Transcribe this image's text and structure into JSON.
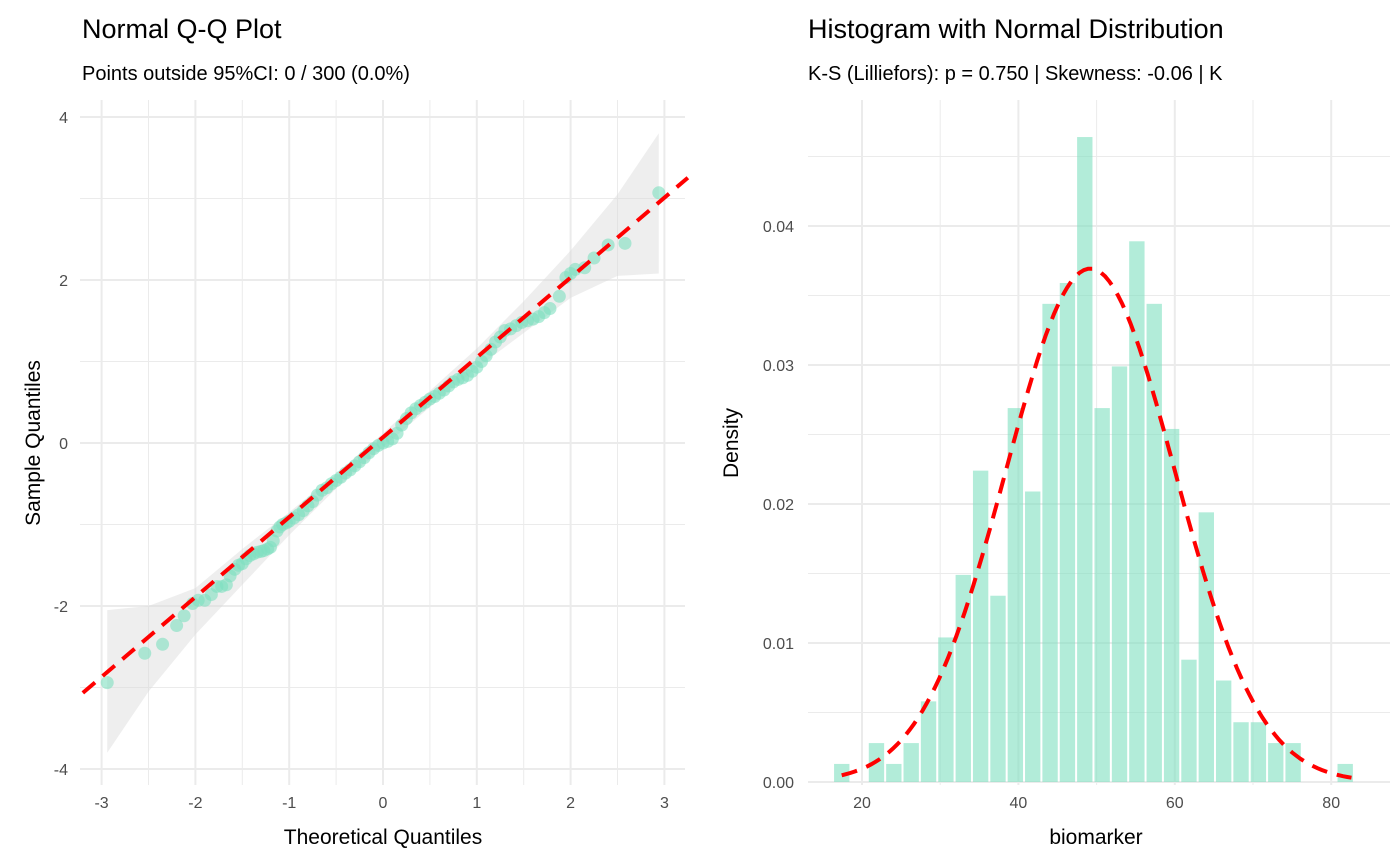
{
  "chart_data": [
    {
      "type": "scatter",
      "title": "Normal Q-Q Plot",
      "subtitle": "Points outside 95%CI: 0 / 300 (0.0%)",
      "xlabel": "Theoretical Quantiles",
      "ylabel": "Sample Quantiles",
      "xlim": [
        -3.2,
        3.25
      ],
      "ylim": [
        -4.2,
        4.2
      ],
      "xticks": [
        -3,
        -2,
        -1,
        0,
        1,
        2,
        3
      ],
      "xtick_labels": [
        "-3",
        "-2",
        "-1",
        "0",
        "1",
        "2",
        "3"
      ],
      "yticks": [
        -4,
        -2,
        0,
        2,
        4
      ],
      "ytick_labels": [
        "-4",
        "-2",
        "0",
        "2",
        "4"
      ],
      "grid": true,
      "n_points": 300,
      "point_color": "#7fe0c0",
      "reference_line": {
        "intercept": 0.07,
        "slope": 0.98,
        "color": "#ff0000",
        "style": "dashed"
      },
      "ci_band": [
        [
          -2.94,
          -3.8,
          -2.05
        ],
        [
          -2.5,
          -3.05,
          -2.0
        ],
        [
          -2.0,
          -2.35,
          -1.78
        ],
        [
          -1.5,
          -1.74,
          -1.3
        ],
        [
          -1.0,
          -1.13,
          -0.85
        ],
        [
          -0.5,
          -0.56,
          -0.38
        ],
        [
          0,
          -0.05,
          0.12
        ],
        [
          0.5,
          0.44,
          0.64
        ],
        [
          1.0,
          0.92,
          1.16
        ],
        [
          1.5,
          1.35,
          1.74
        ],
        [
          2.0,
          1.78,
          2.36
        ],
        [
          2.5,
          2.05,
          3.05
        ],
        [
          2.94,
          2.08,
          3.8
        ]
      ],
      "ci_color": "#d9d9d9",
      "points": [
        [
          -2.94,
          -2.94
        ],
        [
          -2.54,
          -2.58
        ],
        [
          -2.35,
          -2.47
        ],
        [
          -2.2,
          -2.24
        ],
        [
          -2.12,
          -2.12
        ],
        [
          -2.03,
          -1.97
        ],
        [
          -1.97,
          -1.93
        ],
        [
          -1.9,
          -1.93
        ],
        [
          -1.83,
          -1.86
        ],
        [
          -1.77,
          -1.76
        ],
        [
          -1.72,
          -1.76
        ],
        [
          -1.67,
          -1.74
        ],
        [
          -1.63,
          -1.63
        ],
        [
          -1.58,
          -1.55
        ],
        [
          -1.54,
          -1.5
        ],
        [
          -1.5,
          -1.48
        ],
        [
          -1.46,
          -1.42
        ],
        [
          -1.42,
          -1.38
        ],
        [
          -1.38,
          -1.36
        ],
        [
          -1.34,
          -1.34
        ],
        [
          -1.3,
          -1.33
        ],
        [
          -1.27,
          -1.32
        ],
        [
          -1.23,
          -1.3
        ],
        [
          -1.2,
          -1.28
        ],
        [
          -1.17,
          -1.2
        ],
        [
          -1.13,
          -1.08
        ],
        [
          -1.1,
          -1.03
        ],
        [
          -1.07,
          -1.0
        ],
        [
          -1.03,
          -0.98
        ],
        [
          -1.0,
          -0.96
        ],
        [
          -0.95,
          -0.92
        ],
        [
          -0.9,
          -0.88
        ],
        [
          -0.85,
          -0.83
        ],
        [
          -0.8,
          -0.77
        ],
        [
          -0.75,
          -0.72
        ],
        [
          -0.7,
          -0.64
        ],
        [
          -0.65,
          -0.58
        ],
        [
          -0.6,
          -0.55
        ],
        [
          -0.55,
          -0.5
        ],
        [
          -0.5,
          -0.46
        ],
        [
          -0.45,
          -0.42
        ],
        [
          -0.4,
          -0.37
        ],
        [
          -0.35,
          -0.33
        ],
        [
          -0.3,
          -0.28
        ],
        [
          -0.25,
          -0.23
        ],
        [
          -0.2,
          -0.18
        ],
        [
          -0.15,
          -0.12
        ],
        [
          -0.1,
          -0.07
        ],
        [
          -0.05,
          -0.03
        ],
        [
          0,
          0.0
        ],
        [
          0.05,
          0.02
        ],
        [
          0.1,
          0.05
        ],
        [
          0.15,
          0.12
        ],
        [
          0.2,
          0.22
        ],
        [
          0.25,
          0.3
        ],
        [
          0.3,
          0.37
        ],
        [
          0.35,
          0.42
        ],
        [
          0.4,
          0.46
        ],
        [
          0.45,
          0.5
        ],
        [
          0.5,
          0.54
        ],
        [
          0.55,
          0.57
        ],
        [
          0.6,
          0.61
        ],
        [
          0.65,
          0.65
        ],
        [
          0.7,
          0.7
        ],
        [
          0.75,
          0.75
        ],
        [
          0.8,
          0.78
        ],
        [
          0.85,
          0.8
        ],
        [
          0.9,
          0.83
        ],
        [
          0.95,
          0.88
        ],
        [
          1.0,
          0.93
        ],
        [
          1.05,
          1.0
        ],
        [
          1.1,
          1.07
        ],
        [
          1.15,
          1.15
        ],
        [
          1.2,
          1.24
        ],
        [
          1.25,
          1.3
        ],
        [
          1.3,
          1.38
        ],
        [
          1.36,
          1.4
        ],
        [
          1.42,
          1.44
        ],
        [
          1.48,
          1.48
        ],
        [
          1.54,
          1.5
        ],
        [
          1.6,
          1.52
        ],
        [
          1.66,
          1.55
        ],
        [
          1.72,
          1.6
        ],
        [
          1.78,
          1.65
        ],
        [
          1.88,
          1.8
        ],
        [
          1.95,
          2.03
        ],
        [
          2.0,
          2.08
        ],
        [
          2.05,
          2.13
        ],
        [
          2.15,
          2.15
        ],
        [
          2.25,
          2.27
        ],
        [
          2.4,
          2.43
        ],
        [
          2.58,
          2.45
        ],
        [
          2.94,
          3.07
        ]
      ]
    },
    {
      "type": "bar",
      "title": "Histogram with Normal Distribution",
      "subtitle": "K-S (Lilliefors): p = 0.750 | Skewness: -0.06 | K",
      "xlabel": "biomarker",
      "ylabel": "Density",
      "xlim": [
        12.5,
        84.5
      ],
      "ylim": [
        0,
        0.049
      ],
      "xticks": [
        20,
        40,
        60,
        80
      ],
      "xtick_labels": [
        "20",
        "40",
        "60",
        "80"
      ],
      "yticks": [
        0,
        0.01,
        0.02,
        0.03,
        0.04
      ],
      "ytick_labels": [
        "0.00",
        "0.01",
        "0.02",
        "0.03",
        "0.04"
      ],
      "grid": true,
      "bin_start": 16.3,
      "bin_width": 2.22,
      "bar_color": "#7fe0c0",
      "density_values": [
        0.0013,
        0,
        0.0028,
        0.0013,
        0.0028,
        0.0058,
        0.0104,
        0.0149,
        0.0224,
        0.0134,
        0.0269,
        0.0209,
        0.0344,
        0.0359,
        0.0464,
        0.0269,
        0.0299,
        0.0389,
        0.0344,
        0.0254,
        0.0088,
        0.0194,
        0.0073,
        0.0043,
        0.0043,
        0.0028,
        0.0028,
        0,
        0,
        0.0013
      ],
      "normal_curve": {
        "mean": 49.2,
        "sd": 10.8,
        "x_range": [
          17.4,
          82.6
        ],
        "color": "#ff0000",
        "style": "dashed"
      }
    }
  ]
}
